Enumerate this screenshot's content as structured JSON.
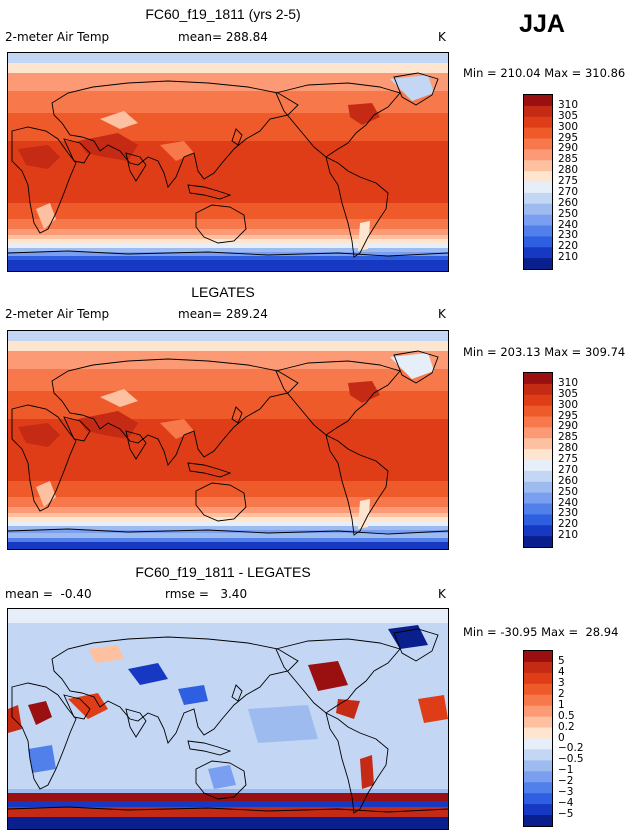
{
  "season": "JJA",
  "panels": [
    {
      "title": "FC60_f19_1811 (yrs 2-5)",
      "left_label": "2-meter Air Temp",
      "mid_label": "mean= 288.84",
      "unit": "K",
      "minmax": "Min = 210.04 Max = 310.86"
    },
    {
      "title": "LEGATES",
      "left_label": "2-meter Air Temp",
      "mid_label": "mean= 289.24",
      "unit": "K",
      "minmax": "Min = 203.13 Max = 309.74"
    },
    {
      "title": "FC60_f19_1811 - LEGATES",
      "left_label": "mean =  -0.40",
      "mid_label": "rmse =   3.40",
      "unit": "K",
      "minmax": "Min = -30.95 Max =  28.94"
    }
  ],
  "chart_data": [
    {
      "type": "heatmap",
      "title": "FC60_f19_1811 (yrs 2-5)",
      "variable": "2-meter Air Temp",
      "units": "K",
      "mean": 288.84,
      "min": 210.04,
      "max": 310.86,
      "colorbar_levels": [
        "310",
        "305",
        "300",
        "295",
        "290",
        "285",
        "280",
        "275",
        "270",
        "260",
        "250",
        "240",
        "230",
        "220",
        "210"
      ],
      "colorbar_colors": [
        "#9a0f0f",
        "#c42a14",
        "#de3d17",
        "#ef5a2a",
        "#f7784b",
        "#fb9a74",
        "#fdc1a2",
        "#fde5d0",
        "#e6eefa",
        "#c3d6f4",
        "#9dbbef",
        "#7a9ef0",
        "#5180ea",
        "#2d5fe0",
        "#1638c3",
        "#0a1f8e"
      ]
    },
    {
      "type": "heatmap",
      "title": "LEGATES",
      "variable": "2-meter Air Temp",
      "units": "K",
      "mean": 289.24,
      "min": 203.13,
      "max": 309.74,
      "colorbar_levels": [
        "310",
        "305",
        "300",
        "295",
        "290",
        "285",
        "280",
        "275",
        "270",
        "260",
        "250",
        "240",
        "230",
        "220",
        "210"
      ],
      "colorbar_colors": [
        "#9a0f0f",
        "#c42a14",
        "#de3d17",
        "#ef5a2a",
        "#f7784b",
        "#fb9a74",
        "#fdc1a2",
        "#fde5d0",
        "#e6eefa",
        "#c3d6f4",
        "#9dbbef",
        "#7a9ef0",
        "#5180ea",
        "#2d5fe0",
        "#1638c3",
        "#0a1f8e"
      ]
    },
    {
      "type": "heatmap",
      "title": "FC60_f19_1811 - LEGATES",
      "units": "K",
      "mean": -0.4,
      "rmse": 3.4,
      "min": -30.95,
      "max": 28.94,
      "colorbar_levels": [
        "5",
        "4",
        "3",
        "2",
        "1",
        "0.5",
        "0.2",
        "0",
        "−0.2",
        "−0.5",
        "−1",
        "−2",
        "−3",
        "−4",
        "−5"
      ],
      "colorbar_colors": [
        "#9a0f0f",
        "#c42a14",
        "#de3d17",
        "#ef5a2a",
        "#f7784b",
        "#fb9a74",
        "#fdc1a2",
        "#fde5d0",
        "#e6eefa",
        "#c3d6f4",
        "#9dbbef",
        "#7a9ef0",
        "#5180ea",
        "#2d5fe0",
        "#1638c3",
        "#0a1f8e"
      ]
    }
  ]
}
